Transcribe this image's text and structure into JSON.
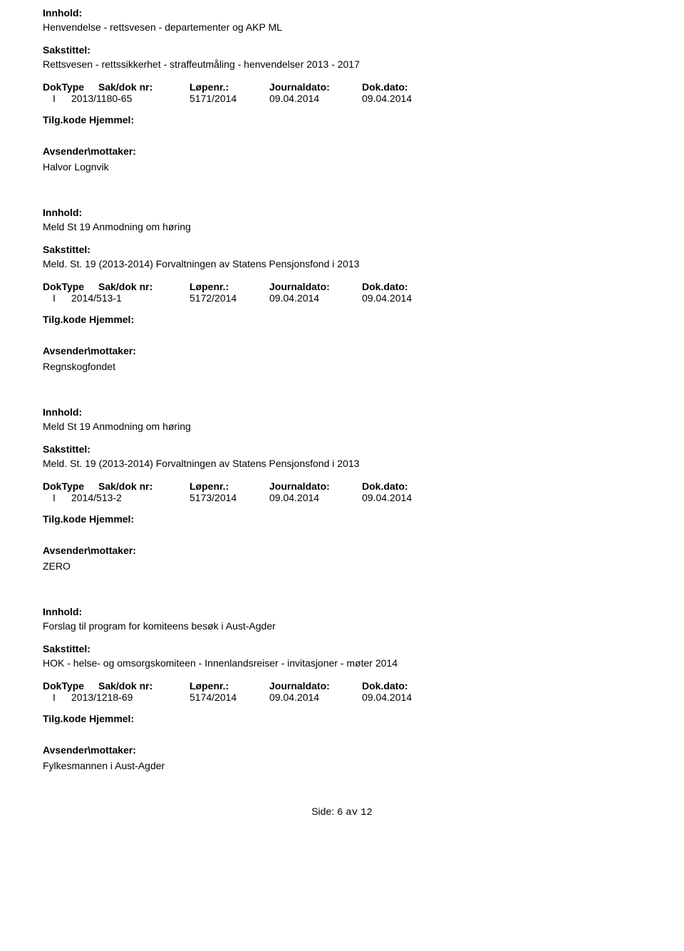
{
  "labels": {
    "innhold": "Innhold:",
    "sakstittel": "Sakstittel:",
    "doktype": "DokType",
    "sakdoknr": "Sak/dok nr:",
    "lopenr": "Løpenr.:",
    "journaldato": "Journaldato:",
    "dokdato": "Dok.dato:",
    "tilgkode": "Tilg.kode Hjemmel:",
    "avsender": "Avsender\\mottaker:"
  },
  "records": [
    {
      "innhold": "Henvendelse - rettsvesen -  departementer og AKP ML",
      "sakstittel": "Rettsvesen - rettssikkerhet - straffeutmåling - henvendelser 2013 - 2017",
      "doktype": "I",
      "sakdoknr": "2013/1180-65",
      "lopenr": "5171/2014",
      "journaldato": "09.04.2014",
      "dokdato": "09.04.2014",
      "avsender": "Halvor Lognvik"
    },
    {
      "innhold": "Meld St 19 Anmodning om høring",
      "sakstittel": "Meld. St. 19 (2013-2014) Forvaltningen av Statens Pensjonsfond i 2013",
      "doktype": "I",
      "sakdoknr": "2014/513-1",
      "lopenr": "5172/2014",
      "journaldato": "09.04.2014",
      "dokdato": "09.04.2014",
      "avsender": "Regnskogfondet"
    },
    {
      "innhold": "Meld St 19 Anmodning om høring",
      "sakstittel": "Meld. St. 19 (2013-2014) Forvaltningen av Statens Pensjonsfond i 2013",
      "doktype": "I",
      "sakdoknr": "2014/513-2",
      "lopenr": "5173/2014",
      "journaldato": "09.04.2014",
      "dokdato": "09.04.2014",
      "avsender": "ZERO"
    },
    {
      "innhold": "Forslag til program for komiteens besøk i Aust-Agder",
      "sakstittel": "HOK - helse- og omsorgskomiteen - Innenlandsreiser - invitasjoner - møter 2014",
      "doktype": "I",
      "sakdoknr": "2013/1218-69",
      "lopenr": "5174/2014",
      "journaldato": "09.04.2014",
      "dokdato": "09.04.2014",
      "avsender": "Fylkesmannen i Aust-Agder"
    }
  ],
  "footer": {
    "label": "Side:",
    "current": "6",
    "sep": "av",
    "total": "12"
  }
}
